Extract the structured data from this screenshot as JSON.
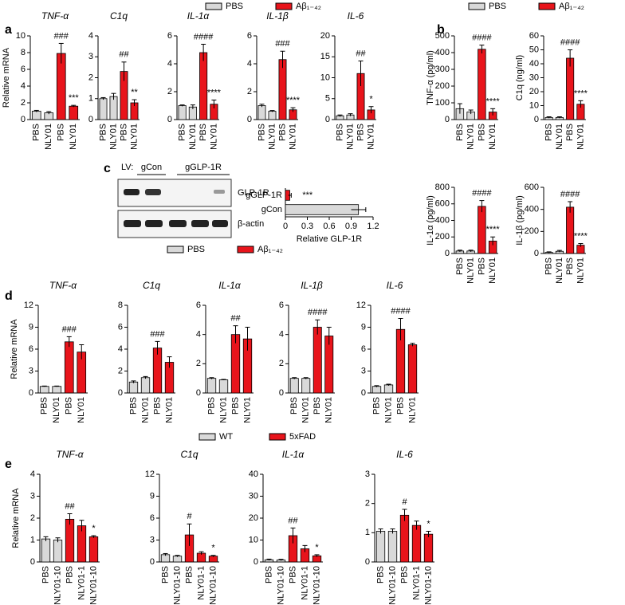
{
  "panel_labels": [
    "a",
    "b",
    "c",
    "d",
    "e"
  ],
  "legends": [
    {
      "items": [
        {
          "name": "PBS",
          "color": "#d9d9d9"
        },
        {
          "name": "Aβ₁₋₄₂",
          "color": "#e8141b"
        }
      ]
    },
    {
      "items": [
        {
          "name": "PBS",
          "color": "#d9d9d9"
        },
        {
          "name": "Aβ₁₋₄₂",
          "color": "#e8141b"
        }
      ]
    },
    {
      "items": [
        {
          "name": "PBS",
          "color": "#d9d9d9"
        },
        {
          "name": "Aβ₁₋₄₂",
          "color": "#e8141b"
        }
      ]
    },
    {
      "items": [
        {
          "name": "WT",
          "color": "#d9d9d9"
        },
        {
          "name": "5xFAD",
          "color": "#e8141b"
        }
      ]
    }
  ],
  "blot": {
    "lv": "LV:",
    "groups": [
      "gCon",
      "gGLP-1R"
    ],
    "bands": [
      "GLP-1R",
      "β-actin"
    ]
  },
  "chart_data": [
    {
      "type": "bar",
      "title": "TNF-α",
      "ylabel": "Relative mRNA",
      "categories": [
        "PBS",
        "NLY01",
        "PBS",
        "NLY01"
      ],
      "colors": [
        "#d9d9d9",
        "#d9d9d9",
        "#e8141b",
        "#e8141b"
      ],
      "values": [
        1.0,
        0.8,
        7.9,
        1.6
      ],
      "errors": [
        0.1,
        0.15,
        1.2,
        0.1
      ],
      "annotations": [
        null,
        null,
        "###",
        "***"
      ],
      "ylim": [
        0,
        10
      ],
      "yticks": [
        0,
        2,
        4,
        6,
        8,
        10
      ]
    },
    {
      "type": "bar",
      "title": "C1q",
      "categories": [
        "PBS",
        "NLY01",
        "PBS",
        "NLY01"
      ],
      "colors": [
        "#d9d9d9",
        "#d9d9d9",
        "#e8141b",
        "#e8141b"
      ],
      "values": [
        1.0,
        1.1,
        2.3,
        0.8
      ],
      "errors": [
        0.05,
        0.15,
        0.45,
        0.15
      ],
      "annotations": [
        null,
        null,
        "##",
        "**"
      ],
      "ylim": [
        0,
        4
      ],
      "yticks": [
        0,
        1,
        2,
        3,
        4
      ]
    },
    {
      "type": "bar",
      "title": "IL-1α",
      "categories": [
        "PBS",
        "NLY01",
        "PBS",
        "NLY01"
      ],
      "colors": [
        "#d9d9d9",
        "#d9d9d9",
        "#e8141b",
        "#e8141b"
      ],
      "values": [
        1.0,
        0.9,
        4.8,
        1.1
      ],
      "errors": [
        0.05,
        0.15,
        0.6,
        0.3
      ],
      "annotations": [
        null,
        null,
        "####",
        "****"
      ],
      "ylim": [
        0,
        6
      ],
      "yticks": [
        0,
        2,
        4,
        6
      ]
    },
    {
      "type": "bar",
      "title": "IL-1β",
      "categories": [
        "PBS",
        "NLY01",
        "PBS",
        "NLY01"
      ],
      "colors": [
        "#d9d9d9",
        "#d9d9d9",
        "#e8141b",
        "#e8141b"
      ],
      "values": [
        1.0,
        0.6,
        4.3,
        0.7
      ],
      "errors": [
        0.1,
        0.05,
        0.6,
        0.15
      ],
      "annotations": [
        null,
        null,
        "###",
        "****"
      ],
      "ylim": [
        0,
        6
      ],
      "yticks": [
        0,
        2,
        4,
        6
      ]
    },
    {
      "type": "bar",
      "title": "IL-6",
      "categories": [
        "PBS",
        "NLY01",
        "PBS",
        "NLY01"
      ],
      "colors": [
        "#d9d9d9",
        "#d9d9d9",
        "#e8141b",
        "#e8141b"
      ],
      "values": [
        0.9,
        1.1,
        11,
        2.3
      ],
      "errors": [
        0.2,
        0.3,
        3,
        0.8
      ],
      "annotations": [
        null,
        null,
        "##",
        "*"
      ],
      "ylim": [
        0,
        20
      ],
      "yticks": [
        0,
        5,
        10,
        15,
        20
      ]
    },
    {
      "type": "bar",
      "ylabel": "TNF-α (pg/ml)",
      "categories": [
        "PBS",
        "NLY01",
        "PBS",
        "NLY01"
      ],
      "colors": [
        "#d9d9d9",
        "#d9d9d9",
        "#e8141b",
        "#e8141b"
      ],
      "values": [
        65,
        45,
        420,
        45
      ],
      "errors": [
        30,
        12,
        25,
        20
      ],
      "annotations": [
        null,
        null,
        "####",
        "****"
      ],
      "ylim": [
        0,
        500
      ],
      "yticks": [
        0,
        100,
        200,
        300,
        400,
        500
      ]
    },
    {
      "type": "bar",
      "ylabel": "C1q (ng/ml)",
      "categories": [
        "PBS",
        "NLY01",
        "PBS",
        "NLY01"
      ],
      "colors": [
        "#d9d9d9",
        "#d9d9d9",
        "#e8141b",
        "#e8141b"
      ],
      "values": [
        1.5,
        1.5,
        44,
        11
      ],
      "errors": [
        0.5,
        0.5,
        6,
        2.5
      ],
      "annotations": [
        null,
        null,
        "####",
        "****"
      ],
      "ylim": [
        0,
        60
      ],
      "yticks": [
        0,
        10,
        20,
        30,
        40,
        50,
        60
      ]
    },
    {
      "type": "bar",
      "ylabel": "IL-1α (pg/ml)",
      "categories": [
        "PBS",
        "NLY01",
        "PBS",
        "NLY01"
      ],
      "colors": [
        "#d9d9d9",
        "#d9d9d9",
        "#e8141b",
        "#e8141b"
      ],
      "values": [
        30,
        30,
        570,
        150
      ],
      "errors": [
        10,
        10,
        70,
        50
      ],
      "annotations": [
        null,
        null,
        "####",
        "****"
      ],
      "ylim": [
        0,
        800
      ],
      "yticks": [
        0,
        200,
        400,
        600,
        800
      ]
    },
    {
      "type": "bar",
      "ylabel": "IL-1β (pg/ml)",
      "categories": [
        "PBS",
        "NLY01",
        "PBS",
        "NLY01"
      ],
      "colors": [
        "#d9d9d9",
        "#d9d9d9",
        "#e8141b",
        "#e8141b"
      ],
      "values": [
        10,
        20,
        420,
        75
      ],
      "errors": [
        5,
        8,
        50,
        15
      ],
      "annotations": [
        null,
        null,
        "####",
        "****"
      ],
      "ylim": [
        0,
        600
      ],
      "yticks": [
        0,
        200,
        400,
        600
      ]
    },
    {
      "type": "hbar",
      "xlabel": "Relative GLP-1R",
      "categories": [
        "gGLP-1R",
        "gCon"
      ],
      "colors": [
        "#e8141b",
        "#d9d9d9"
      ],
      "values": [
        0.06,
        1.0
      ],
      "errors": [
        0.02,
        0.1
      ],
      "annotations": [
        "***",
        null
      ],
      "xlim": [
        0,
        1.2
      ],
      "xticks": [
        0,
        0.3,
        0.6,
        0.9,
        1.2
      ]
    },
    {
      "type": "bar",
      "title": "TNF-α",
      "ylabel": "Relative mRNA",
      "categories": [
        "PBS",
        "NLY01",
        "PBS",
        "NLY01"
      ],
      "colors": [
        "#d9d9d9",
        "#d9d9d9",
        "#e8141b",
        "#e8141b"
      ],
      "values": [
        0.9,
        0.9,
        7.0,
        5.6
      ],
      "errors": [
        0.05,
        0.05,
        0.7,
        1.0
      ],
      "annotations": [
        null,
        null,
        "###",
        null
      ],
      "ylim": [
        0,
        12
      ],
      "yticks": [
        0,
        3,
        6,
        9,
        12
      ]
    },
    {
      "type": "bar",
      "title": "C1q",
      "categories": [
        "PBS",
        "NLY01",
        "PBS",
        "NLY01"
      ],
      "colors": [
        "#d9d9d9",
        "#d9d9d9",
        "#e8141b",
        "#e8141b"
      ],
      "values": [
        1.0,
        1.4,
        4.1,
        2.8
      ],
      "errors": [
        0.1,
        0.1,
        0.6,
        0.5
      ],
      "annotations": [
        null,
        null,
        "###",
        null
      ],
      "ylim": [
        0,
        8
      ],
      "yticks": [
        0,
        2,
        4,
        6,
        8
      ]
    },
    {
      "type": "bar",
      "title": "IL-1α",
      "categories": [
        "PBS",
        "NLY01",
        "PBS",
        "NLY01"
      ],
      "colors": [
        "#d9d9d9",
        "#d9d9d9",
        "#e8141b",
        "#e8141b"
      ],
      "values": [
        1.0,
        0.9,
        4.0,
        3.7
      ],
      "errors": [
        0.05,
        0.03,
        0.6,
        0.8
      ],
      "annotations": [
        null,
        null,
        "##",
        null
      ],
      "ylim": [
        0,
        6
      ],
      "yticks": [
        0,
        2,
        4,
        6
      ]
    },
    {
      "type": "bar",
      "title": "IL-1β",
      "categories": [
        "PBS",
        "NLY01",
        "PBS",
        "NLY01"
      ],
      "colors": [
        "#d9d9d9",
        "#d9d9d9",
        "#e8141b",
        "#e8141b"
      ],
      "values": [
        1.0,
        1.0,
        4.5,
        3.9
      ],
      "errors": [
        0.05,
        0.05,
        0.5,
        0.6
      ],
      "annotations": [
        null,
        null,
        "####",
        null
      ],
      "ylim": [
        0,
        6
      ],
      "yticks": [
        0,
        2,
        4,
        6
      ]
    },
    {
      "type": "bar",
      "title": "IL-6",
      "categories": [
        "PBS",
        "NLY01",
        "PBS",
        "NLY01"
      ],
      "colors": [
        "#d9d9d9",
        "#d9d9d9",
        "#e8141b",
        "#e8141b"
      ],
      "values": [
        0.9,
        1.1,
        8.7,
        6.6
      ],
      "errors": [
        0.1,
        0.1,
        1.5,
        0.2
      ],
      "annotations": [
        null,
        null,
        "####",
        null
      ],
      "ylim": [
        0,
        12
      ],
      "yticks": [
        0,
        3,
        6,
        9,
        12
      ]
    },
    {
      "type": "bar",
      "title": "TNF-α",
      "ylabel": "Relative mRNA",
      "categories": [
        "PBS",
        "NLY01-10",
        "PBS",
        "NLY01-1",
        "NLY01-10"
      ],
      "colors": [
        "#d9d9d9",
        "#d9d9d9",
        "#e8141b",
        "#e8141b",
        "#e8141b"
      ],
      "values": [
        1.05,
        1.0,
        1.95,
        1.65,
        1.15
      ],
      "errors": [
        0.1,
        0.1,
        0.25,
        0.25,
        0.05
      ],
      "annotations": [
        null,
        null,
        "##",
        null,
        "*"
      ],
      "ylim": [
        0,
        4
      ],
      "yticks": [
        0,
        1,
        2,
        3,
        4
      ]
    },
    {
      "type": "bar",
      "title": "C1q",
      "categories": [
        "PBS",
        "NLY01-10",
        "PBS",
        "NLY01-1",
        "NLY01-10"
      ],
      "colors": [
        "#d9d9d9",
        "#d9d9d9",
        "#e8141b",
        "#e8141b",
        "#e8141b"
      ],
      "values": [
        1.0,
        0.8,
        3.7,
        1.2,
        0.8
      ],
      "errors": [
        0.15,
        0.1,
        1.5,
        0.2,
        0.1
      ],
      "annotations": [
        null,
        null,
        "#",
        null,
        "*"
      ],
      "ylim": [
        0,
        12
      ],
      "yticks": [
        0,
        3,
        6,
        9,
        12
      ]
    },
    {
      "type": "bar",
      "title": "IL-1α",
      "categories": [
        "PBS",
        "NLY01-10",
        "PBS",
        "NLY01-1",
        "NLY01-10"
      ],
      "colors": [
        "#d9d9d9",
        "#d9d9d9",
        "#e8141b",
        "#e8141b",
        "#e8141b"
      ],
      "values": [
        1.0,
        0.9,
        12,
        6,
        2.8
      ],
      "errors": [
        0.3,
        0.3,
        3.5,
        1.5,
        0.5
      ],
      "annotations": [
        null,
        null,
        "##",
        null,
        "*"
      ],
      "ylim": [
        0,
        40
      ],
      "yticks": [
        0,
        10,
        20,
        30,
        40
      ]
    },
    {
      "type": "bar",
      "title": "IL-6",
      "categories": [
        "PBS",
        "NLY01-10",
        "PBS",
        "NLY01-1",
        "NLY01-10"
      ],
      "colors": [
        "#d9d9d9",
        "#d9d9d9",
        "#e8141b",
        "#e8141b",
        "#e8141b"
      ],
      "values": [
        1.05,
        1.05,
        1.6,
        1.25,
        0.95
      ],
      "errors": [
        0.08,
        0.08,
        0.2,
        0.15,
        0.1
      ],
      "annotations": [
        null,
        null,
        "#",
        null,
        "*"
      ],
      "ylim": [
        0,
        3
      ],
      "yticks": [
        0,
        1,
        2,
        3
      ]
    }
  ]
}
